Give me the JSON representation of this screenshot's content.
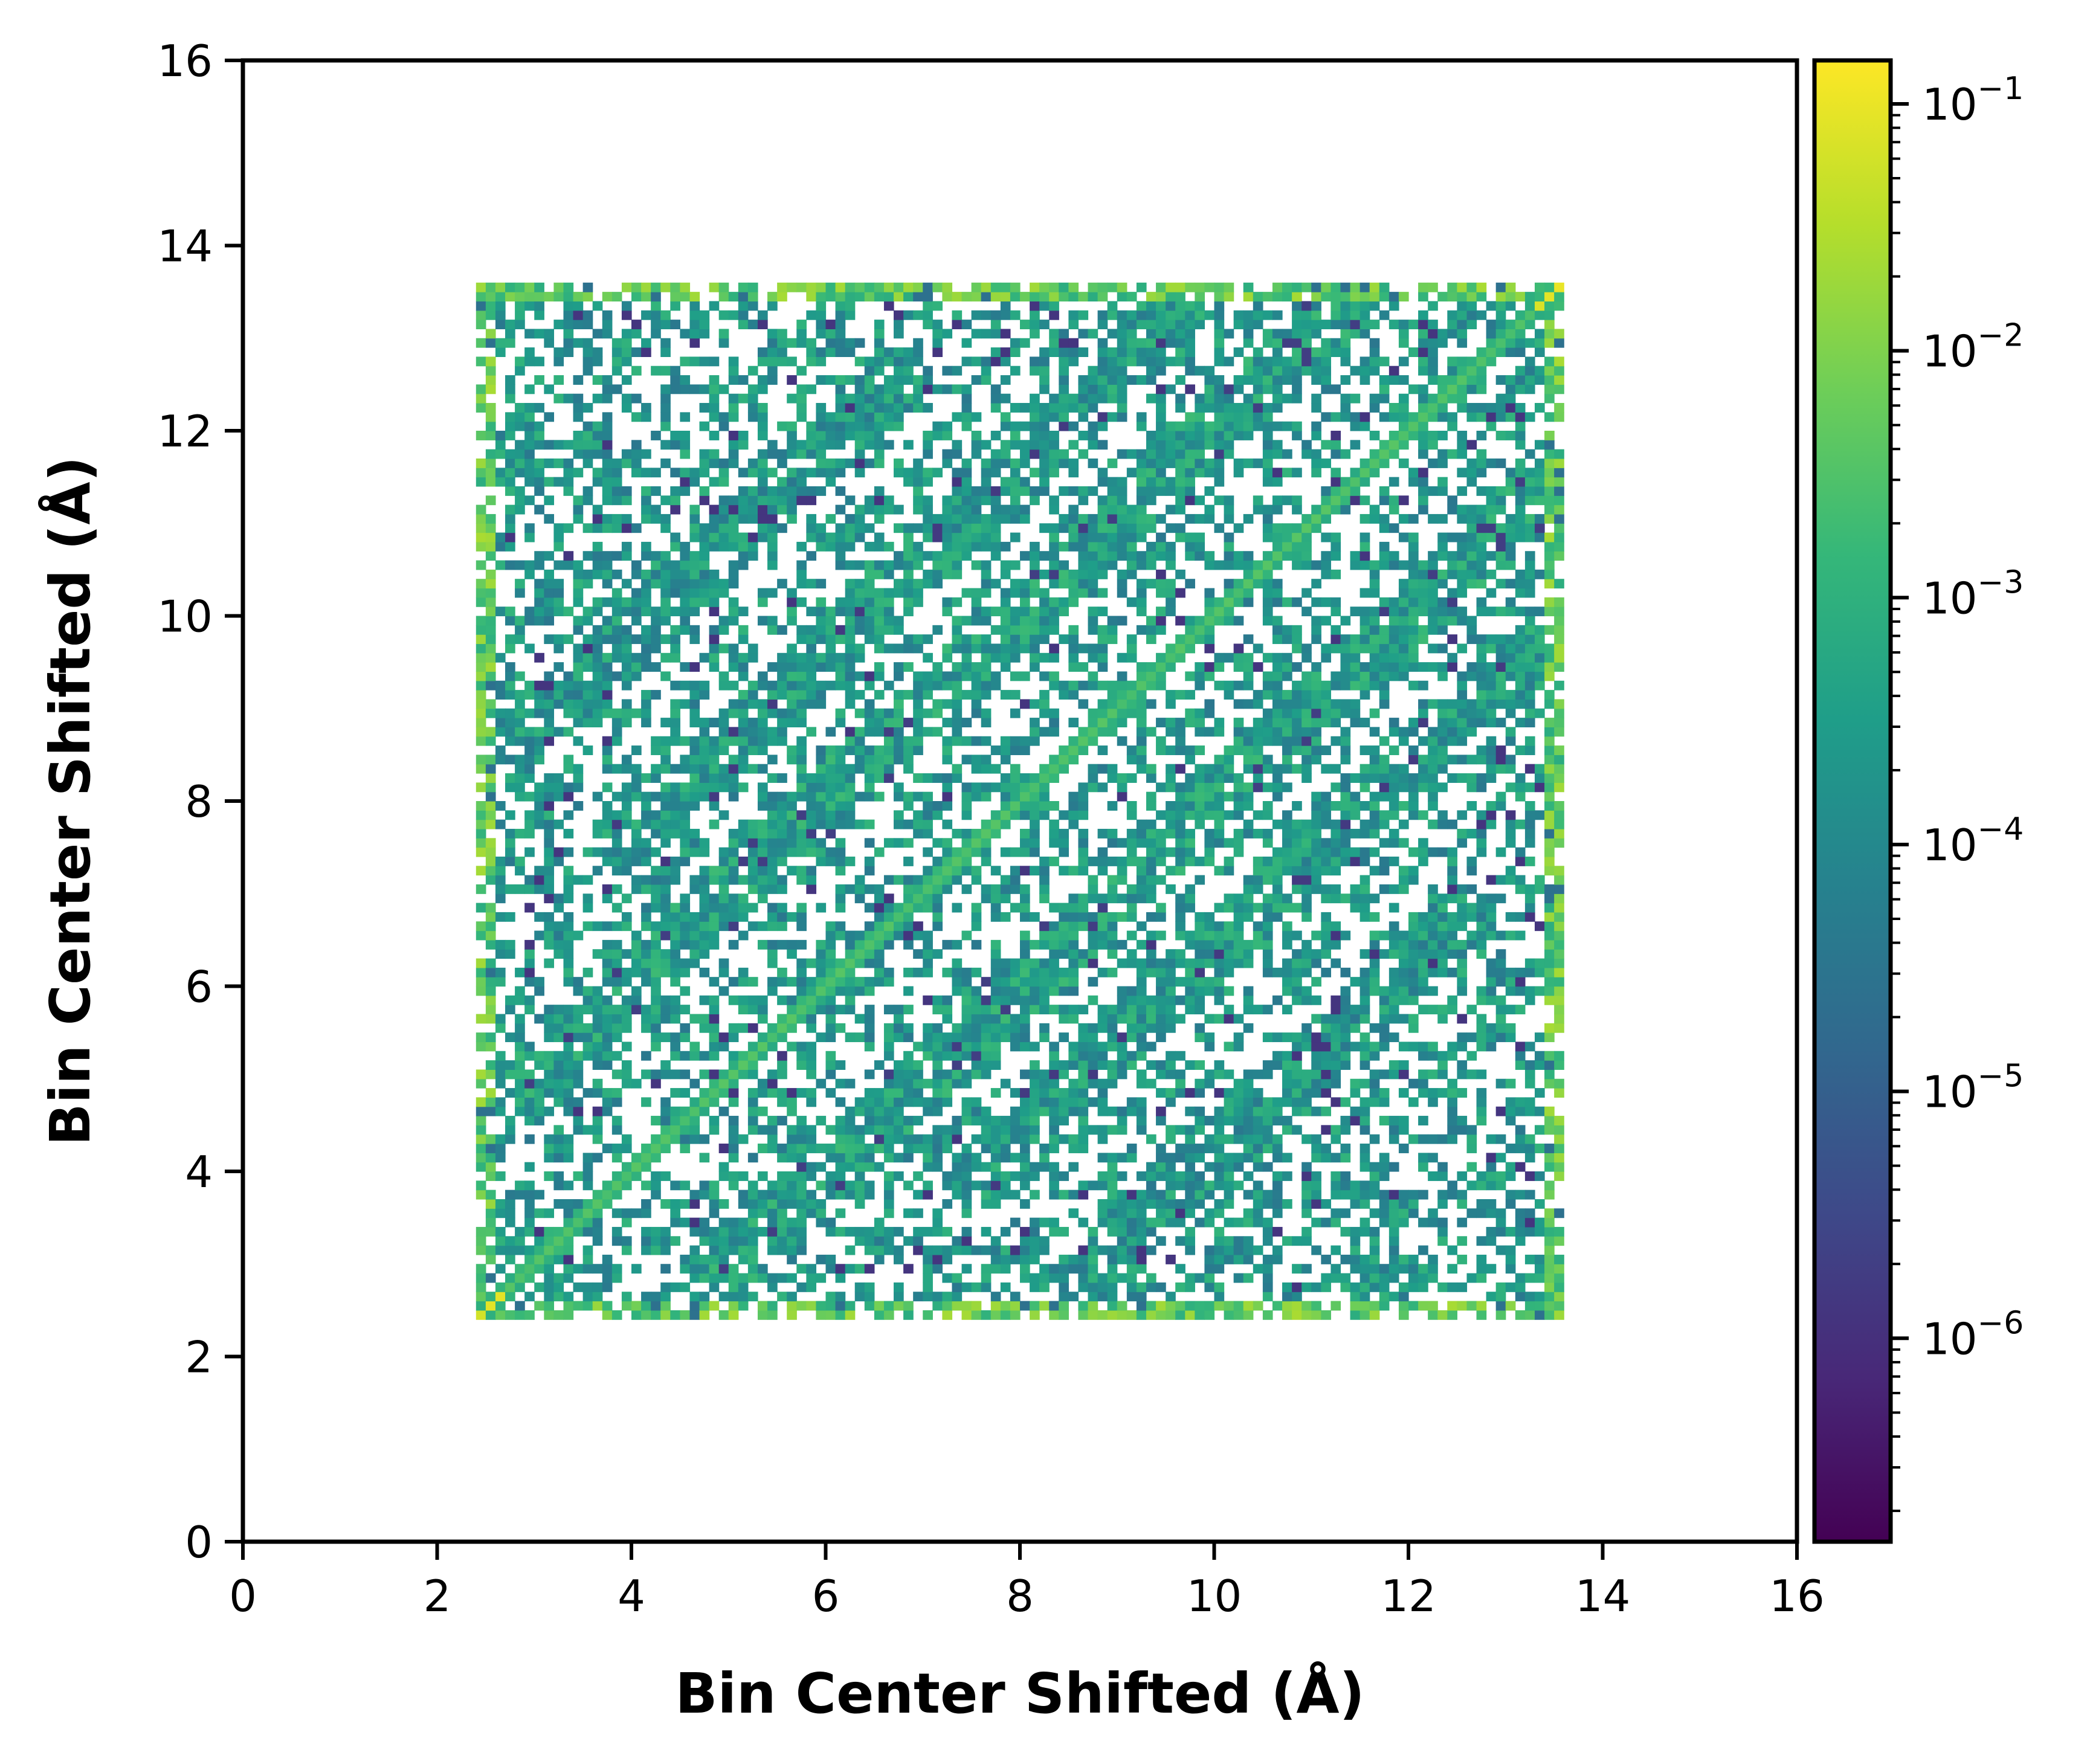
{
  "chart_data": {
    "type": "heatmap",
    "title": "",
    "xlabel": "Bin Center Shifted (Å)",
    "ylabel": "Bin Center Shifted (Å)",
    "xlim": [
      0,
      16
    ],
    "ylim": [
      0,
      16
    ],
    "xticks": [
      "0",
      "2",
      "4",
      "6",
      "8",
      "10",
      "12",
      "14",
      "16"
    ],
    "yticks": [
      "0",
      "2",
      "4",
      "6",
      "8",
      "10",
      "12",
      "14",
      "16"
    ],
    "grid": false,
    "data_extent": {
      "x": [
        2.4,
        13.6
      ],
      "y": [
        2.4,
        13.6
      ]
    },
    "bin_width": 0.1,
    "symmetric": true,
    "colormap": "viridis",
    "colormap_stops": [
      "#440154",
      "#482878",
      "#3e4989",
      "#31688e",
      "#26828e",
      "#1f9e89",
      "#35b779",
      "#6ece58",
      "#b5de2b",
      "#fde725"
    ],
    "colorbar": {
      "scale": "log",
      "range": [
        1.5e-07,
        0.15
      ],
      "ticks": [
        {
          "base": "10",
          "exp": "−1",
          "value": 0.1
        },
        {
          "base": "10",
          "exp": "−2",
          "value": 0.01
        },
        {
          "base": "10",
          "exp": "−3",
          "value": 0.001
        },
        {
          "base": "10",
          "exp": "−4",
          "value": 0.0001
        },
        {
          "base": "10",
          "exp": "−5",
          "value": 1e-05
        },
        {
          "base": "10",
          "exp": "−6",
          "value": 1e-06
        }
      ]
    },
    "features": {
      "diagonal_value": 0.003,
      "corner_peaks": [
        {
          "x": 2.55,
          "y": 2.55,
          "value": 0.1
        },
        {
          "x": 13.45,
          "y": 13.45,
          "value": 0.1
        }
      ],
      "edge_value": 0.004,
      "background_value": 0.0002,
      "bands": [
        {
          "x_start": 3.0,
          "y_start": 5.0,
          "x_end": 11.2,
          "y_end": 13.2,
          "value": 0.0003
        },
        {
          "x_start": 4.0,
          "y_start": 7.6,
          "x_end": 9.6,
          "y_end": 13.2,
          "value": 0.00025
        },
        {
          "x_start": 3.0,
          "y_start": 8.8,
          "x_end": 6.8,
          "y_end": 12.6,
          "value": 0.0002
        }
      ],
      "fill_fraction": 0.5
    }
  }
}
